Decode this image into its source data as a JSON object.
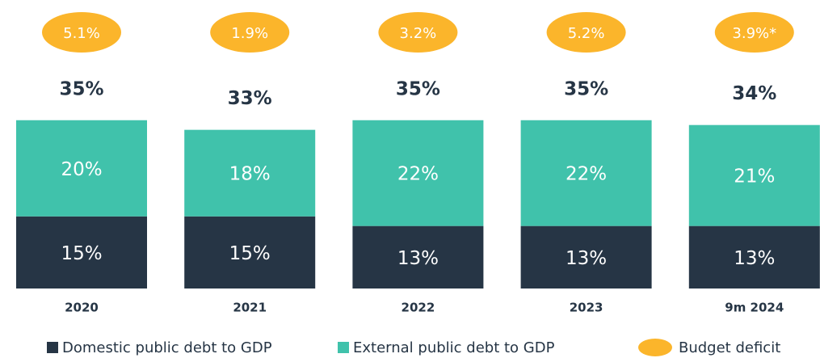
{
  "chart_data": {
    "type": "stacked-bar",
    "categories": [
      "2020",
      "2021",
      "2022",
      "2023",
      "9m 2024"
    ],
    "series": [
      {
        "name": "Domestic public debt to GDP",
        "color": "#263545",
        "values": [
          15,
          15,
          13,
          13,
          13
        ],
        "value_labels": [
          "15%",
          "15%",
          "13%",
          "13%",
          "13%"
        ]
      },
      {
        "name": "External public debt to GDP",
        "color": "#40c2ab",
        "values": [
          20,
          18,
          22,
          22,
          21
        ],
        "value_labels": [
          "20%",
          "18%",
          "22%",
          "22%",
          "21%"
        ]
      }
    ],
    "totals": [
      35,
      33,
      35,
      35,
      34
    ],
    "total_labels": [
      "35%",
      "33%",
      "35%",
      "35%",
      "34%"
    ],
    "deficit": {
      "name": "Budget deficit",
      "color": "#fbb52b",
      "values": [
        5.1,
        1.9,
        3.2,
        5.2,
        3.9
      ],
      "value_labels": [
        "5.1%",
        "1.9%",
        "3.2%",
        "5.2%",
        "3.9%*"
      ]
    }
  }
}
